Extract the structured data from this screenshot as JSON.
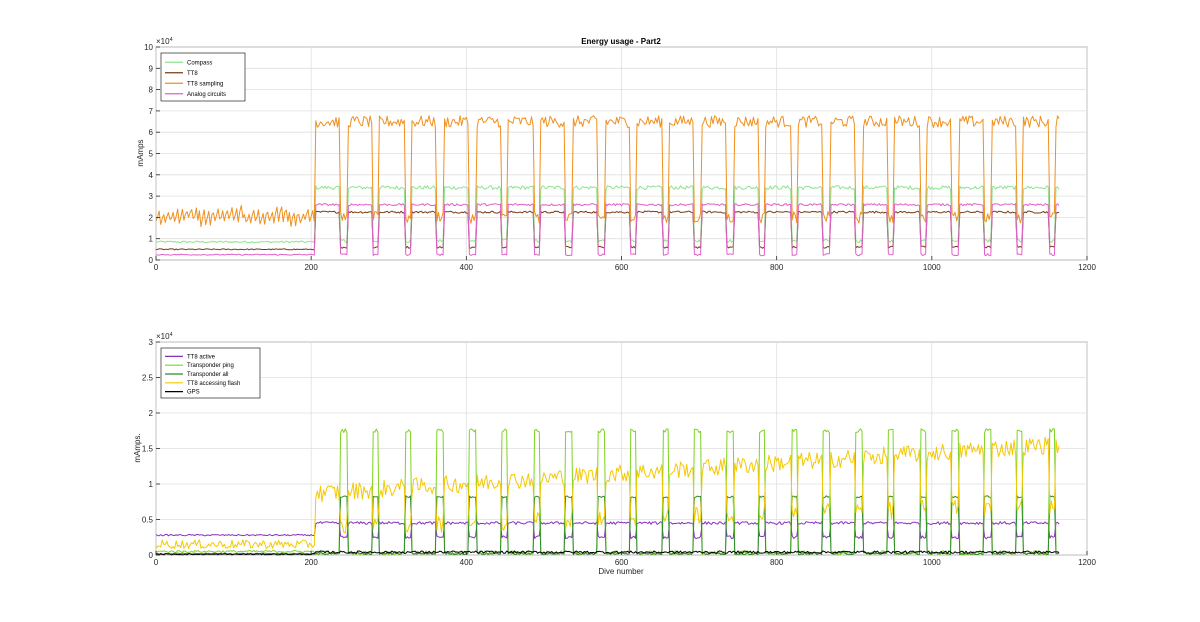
{
  "chart_data": [
    {
      "type": "line",
      "title": "Energy usage - Part2",
      "xlabel": "",
      "ylabel": "mAmps",
      "xlim": [
        0,
        1200
      ],
      "ylim": [
        0,
        100000
      ],
      "exponent_label": "×10",
      "exponent_power": "4",
      "x_ticks": [
        "0",
        "200",
        "400",
        "600",
        "800",
        "1000",
        "1200"
      ],
      "y_ticks": [
        "0",
        "1",
        "2",
        "3",
        "4",
        "5",
        "6",
        "7",
        "8",
        "9",
        "10"
      ],
      "grid": true,
      "legend_position": "top-left",
      "series": [
        {
          "name": "Compass",
          "color": "#8fe38f",
          "base": 8500,
          "dive": 34000,
          "surface": 9000,
          "noise": 1800
        },
        {
          "name": "TT8",
          "color": "#7a3b12",
          "base": 5000,
          "dive": 22500,
          "surface": 6000,
          "noise": 1000
        },
        {
          "name": "TT8 sampling",
          "color": "#f0901e",
          "base": 17000,
          "dive": 65000,
          "surface": 20000,
          "noise": 5500
        },
        {
          "name": "Analog circuits",
          "color": "#e060c8",
          "base": 2500,
          "dive": 26000,
          "surface": 2500,
          "noise": 1000
        }
      ]
    },
    {
      "type": "line",
      "title": "",
      "xlabel": "Dive number",
      "ylabel": "mAmps.",
      "xlim": [
        0,
        1200
      ],
      "ylim": [
        0,
        30000
      ],
      "exponent_label": "×10",
      "exponent_power": "4",
      "x_ticks": [
        "0",
        "200",
        "400",
        "600",
        "800",
        "1000",
        "1200"
      ],
      "y_ticks": [
        "0",
        "0.5",
        "1",
        "1.5",
        "2",
        "2.5",
        "3"
      ],
      "grid": true,
      "legend_position": "top-left",
      "series": [
        {
          "name": "TT8 active",
          "color": "#8a2fbf",
          "base": 2800,
          "dive": 4500,
          "surface": 2500,
          "noise": 400
        },
        {
          "name": "Transponder ping",
          "color": "#7ed321",
          "base": 500,
          "dive": 300,
          "surface": 17500,
          "noise": 600
        },
        {
          "name": "Transponder all",
          "color": "#2e8b2e",
          "base": 200,
          "dive": 200,
          "surface": 8200,
          "noise": 300
        },
        {
          "name": "TT8 accessing flash",
          "color": "#f5c800",
          "base": 1500,
          "dive": 12000,
          "surface": 5500,
          "noise": 2500
        },
        {
          "name": "GPS",
          "color": "#000000",
          "base": 100,
          "dive": 400,
          "surface": 400,
          "noise": 350
        }
      ]
    }
  ]
}
